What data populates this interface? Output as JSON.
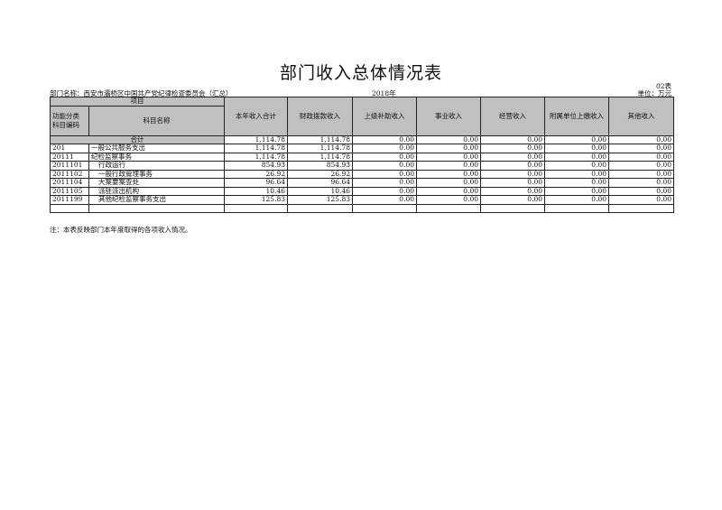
{
  "title": "部门收入总体情况表",
  "table_no": "02表",
  "department": "部门名称：西安市灞桥区中国共产党纪律检查委员会（汇总）",
  "year": "2018年",
  "unit": "单位：万元",
  "headers": {
    "project": "项目",
    "code": "功能分类\n科目编码",
    "name": "科目名称",
    "cols": [
      "本年收入合计",
      "财政拨款收入",
      "上级补助收入",
      "事业收入",
      "经营收入",
      "附属单位上缴收入",
      "其他收入"
    ]
  },
  "total": {
    "label": "合计",
    "values": [
      "1,114.78",
      "1,114.78",
      "0.00",
      "0.00",
      "0.00",
      "0.00",
      "0.00"
    ]
  },
  "rows": [
    {
      "code": "201",
      "name": "一般公共服务支出",
      "values": [
        "1,114.78",
        "1,114.78",
        "0.00",
        "0.00",
        "0.00",
        "0.00",
        "0.00"
      ]
    },
    {
      "code": "20111",
      "name": "纪检监察事务",
      "values": [
        "1,114.78",
        "1,114.78",
        "0.00",
        "0.00",
        "0.00",
        "0.00",
        "0.00"
      ]
    },
    {
      "code": "2011101",
      "name": "行政运行",
      "values": [
        "854.93",
        "854.93",
        "0.00",
        "0.00",
        "0.00",
        "0.00",
        "0.00"
      ]
    },
    {
      "code": "2011102",
      "name": "一般行政管理事务",
      "values": [
        "26.92",
        "26.92",
        "0.00",
        "0.00",
        "0.00",
        "0.00",
        "0.00"
      ]
    },
    {
      "code": "2011104",
      "name": "大案要案查处",
      "values": [
        "96.64",
        "96.64",
        "0.00",
        "0.00",
        "0.00",
        "0.00",
        "0.00"
      ]
    },
    {
      "code": "2011105",
      "name": "派驻派出机构",
      "values": [
        "10.46",
        "10.46",
        "0.00",
        "0.00",
        "0.00",
        "0.00",
        "0.00"
      ]
    },
    {
      "code": "2011199",
      "name": "其他纪检监察事务支出",
      "values": [
        "125.83",
        "125.83",
        "0.00",
        "0.00",
        "0.00",
        "0.00",
        "0.00"
      ]
    }
  ],
  "note": "注：本表反映部门本年度取得的各项收入情况。"
}
